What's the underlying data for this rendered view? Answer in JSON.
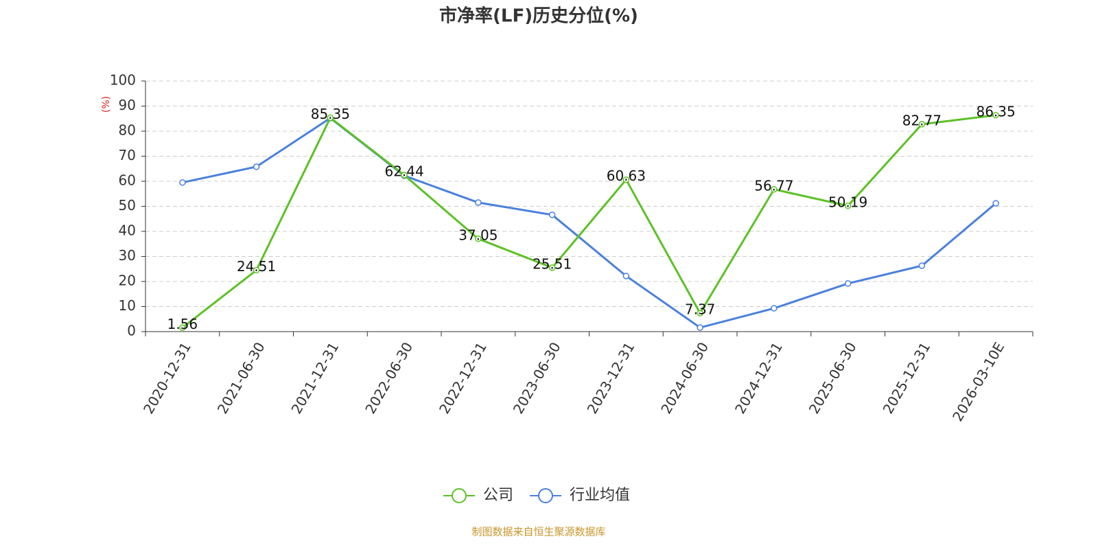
{
  "chart_data": {
    "type": "line",
    "title": "市净率(LF)历史分位(%)",
    "y_label": "(%)",
    "categories": [
      "2020-12-31",
      "2021-06-30",
      "2021-12-31",
      "2022-06-30",
      "2022-12-31",
      "2023-06-30",
      "2023-12-31",
      "2024-06-30",
      "2024-12-31",
      "2025-06-30",
      "2025-12-31",
      "2026-03-10E"
    ],
    "series": [
      {
        "name": "公司",
        "color": "#5cc125",
        "values": [
          1.56,
          24.51,
          85.35,
          62.44,
          37.05,
          25.51,
          60.63,
          7.37,
          56.77,
          50.19,
          82.77,
          86.35
        ],
        "show_labels": true
      },
      {
        "name": "行业均值",
        "color": "#4a80dc",
        "values": [
          59.5,
          65.8,
          85.2,
          62.2,
          51.5,
          46.6,
          22.2,
          1.6,
          9.3,
          19.2,
          26.3,
          51.2
        ],
        "show_labels": false
      }
    ],
    "ylim": [
      0,
      100
    ],
    "yticks": [
      0,
      10,
      20,
      30,
      40,
      50,
      60,
      70,
      80,
      90,
      100
    ],
    "grid": true,
    "source": "制图数据来自恒生聚源数据库"
  }
}
